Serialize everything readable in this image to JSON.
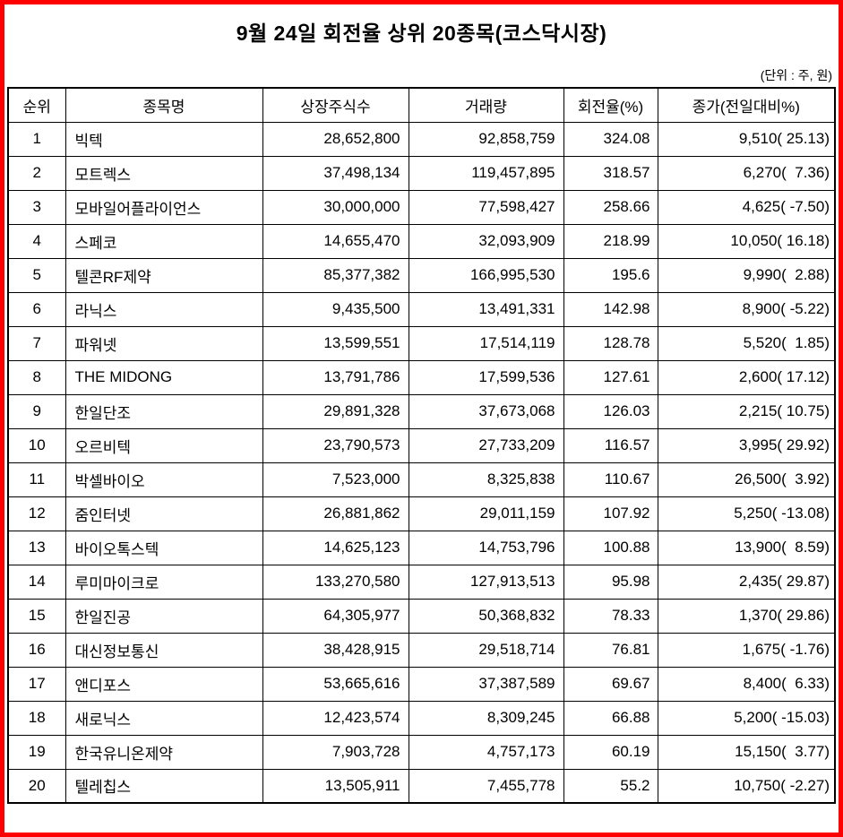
{
  "page": {
    "title": "9월 24일 회전율 상위 20종목(코스닥시장)",
    "unit_note": "(단위 : 주, 원)"
  },
  "colors": {
    "frame_border": "#ff0000",
    "table_border": "#000000",
    "text": "#000000",
    "background": "#ffffff"
  },
  "table": {
    "headers": [
      "순위",
      "종목명",
      "상장주식수",
      "거래량",
      "회전율(%)",
      "종가(전일대비%)"
    ],
    "rows": [
      [
        "1",
        "빅텍",
        "28,652,800",
        "92,858,759",
        "324.08",
        "9,510( 25.13)"
      ],
      [
        "2",
        "모트렉스",
        "37,498,134",
        "119,457,895",
        "318.57",
        "6,270(  7.36)"
      ],
      [
        "3",
        "모바일어플라이언스",
        "30,000,000",
        "77,598,427",
        "258.66",
        "4,625( -7.50)"
      ],
      [
        "4",
        "스페코",
        "14,655,470",
        "32,093,909",
        "218.99",
        "10,050( 16.18)"
      ],
      [
        "5",
        "텔콘RF제약",
        "85,377,382",
        "166,995,530",
        "195.6",
        "9,990(  2.88)"
      ],
      [
        "6",
        "라닉스",
        "9,435,500",
        "13,491,331",
        "142.98",
        "8,900( -5.22)"
      ],
      [
        "7",
        "파워넷",
        "13,599,551",
        "17,514,119",
        "128.78",
        "5,520(  1.85)"
      ],
      [
        "8",
        "THE MIDONG",
        "13,791,786",
        "17,599,536",
        "127.61",
        "2,600( 17.12)"
      ],
      [
        "9",
        "한일단조",
        "29,891,328",
        "37,673,068",
        "126.03",
        "2,215( 10.75)"
      ],
      [
        "10",
        "오르비텍",
        "23,790,573",
        "27,733,209",
        "116.57",
        "3,995( 29.92)"
      ],
      [
        "11",
        "박셀바이오",
        "7,523,000",
        "8,325,838",
        "110.67",
        "26,500(  3.92)"
      ],
      [
        "12",
        "줌인터넷",
        "26,881,862",
        "29,011,159",
        "107.92",
        "5,250( -13.08)"
      ],
      [
        "13",
        "바이오톡스텍",
        "14,625,123",
        "14,753,796",
        "100.88",
        "13,900(  8.59)"
      ],
      [
        "14",
        "루미마이크로",
        "133,270,580",
        "127,913,513",
        "95.98",
        "2,435( 29.87)"
      ],
      [
        "15",
        "한일진공",
        "64,305,977",
        "50,368,832",
        "78.33",
        "1,370( 29.86)"
      ],
      [
        "16",
        "대신정보통신",
        "38,428,915",
        "29,518,714",
        "76.81",
        "1,675( -1.76)"
      ],
      [
        "17",
        "앤디포스",
        "53,665,616",
        "37,387,589",
        "69.67",
        "8,400(  6.33)"
      ],
      [
        "18",
        "새로닉스",
        "12,423,574",
        "8,309,245",
        "66.88",
        "5,200( -15.03)"
      ],
      [
        "19",
        "한국유니온제약",
        "7,903,728",
        "4,757,173",
        "60.19",
        "15,150(  3.77)"
      ],
      [
        "20",
        "텔레칩스",
        "13,505,911",
        "7,455,778",
        "55.2",
        "10,750( -2.27)"
      ]
    ]
  }
}
